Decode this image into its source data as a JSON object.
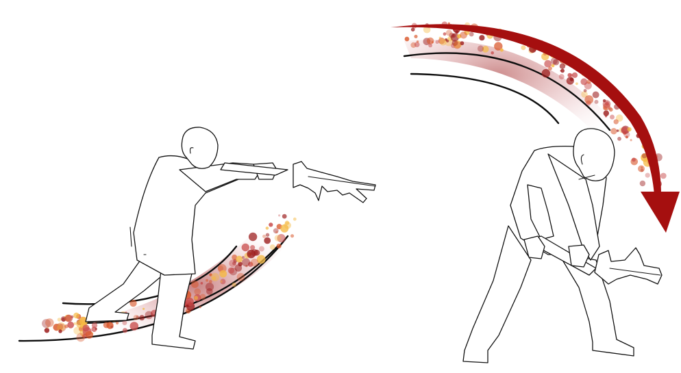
{
  "figure": {
    "panels": [
      {
        "id": "thrust",
        "motion": "horizontal-sweep"
      },
      {
        "id": "downward-swing",
        "motion": "overhead-arc"
      }
    ]
  },
  "colors": {
    "background": "#ffffff",
    "outline": "#111111",
    "motion_arrow": "#a50f0f",
    "blur_dark": "#9b1b1b",
    "blur_mid": "#d9572b",
    "blur_light": "#f5b942"
  },
  "icons": [
    "swordsman-figure",
    "serrated-sword",
    "motion-arrow",
    "speed-lines"
  ]
}
